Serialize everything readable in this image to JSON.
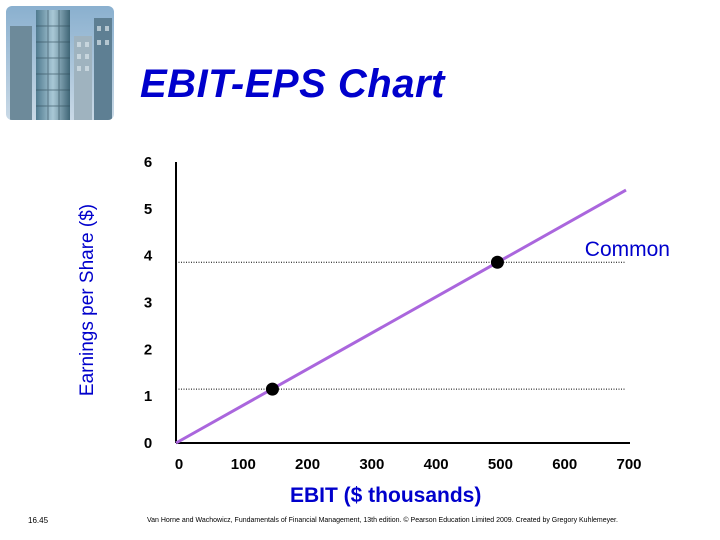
{
  "slide": {
    "title": "EBIT-EPS Chart",
    "slide_number": "16.45",
    "footer": "Van Horne and Wachowicz, Fundamentals of Financial Management, 13th edition. © Pearson Education Limited 2009. Created by Gregory Kuhlemeyer."
  },
  "colors": {
    "title": "#0000cc",
    "line": "#aa66dd",
    "axis": "#000000"
  },
  "chart_data": {
    "type": "line",
    "title": "EBIT-EPS Chart",
    "xlabel": "EBIT ($ thousands)",
    "ylabel": "Earnings per Share ($)",
    "xlim": [
      0,
      700
    ],
    "ylim": [
      0,
      6
    ],
    "x_ticks": [
      0,
      100,
      200,
      300,
      400,
      500,
      600,
      700
    ],
    "y_ticks": [
      0,
      1,
      2,
      3,
      4,
      5,
      6
    ],
    "grid": false,
    "series": [
      {
        "name": "Common",
        "x": [
          0,
          700
        ],
        "y": [
          0,
          5.4
        ]
      }
    ],
    "points": [
      {
        "x": 150,
        "y": 1.15
      },
      {
        "x": 500,
        "y": 3.86
      }
    ],
    "reference_lines_y": [
      1.15,
      3.86
    ]
  }
}
